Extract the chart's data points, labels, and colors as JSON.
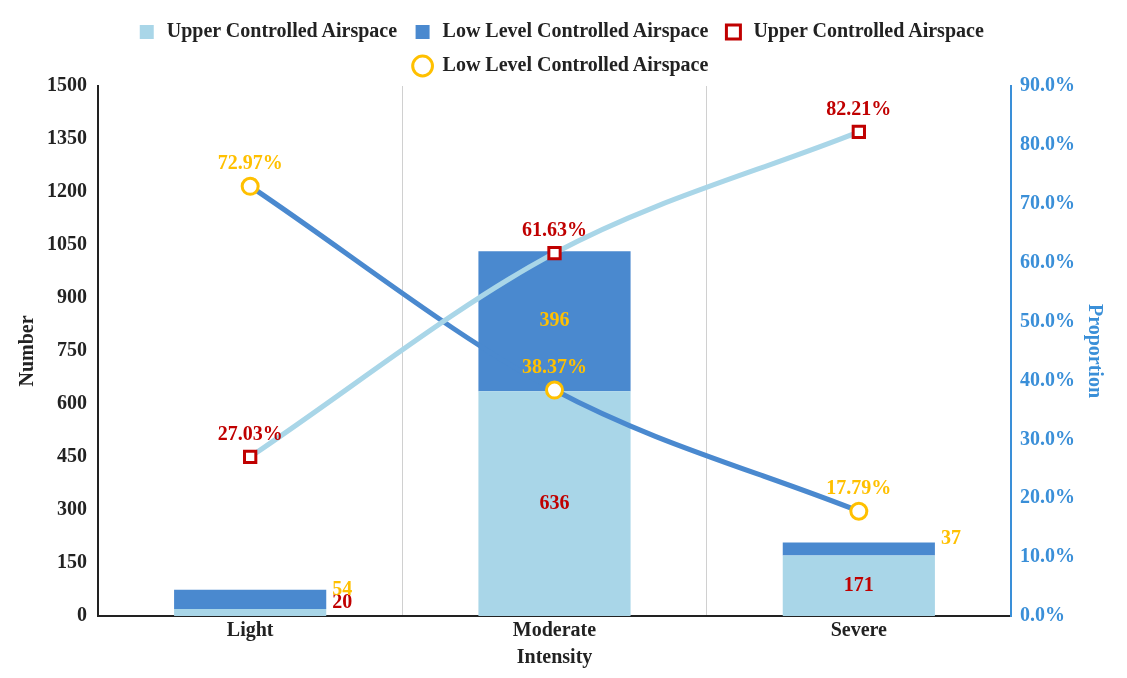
{
  "chart_data": {
    "type": "bar",
    "stacked": true,
    "xlabel": "Intensity",
    "ylabel": "Number",
    "y2label": "Proportion",
    "categories": [
      "Light",
      "Moderate",
      "Severe"
    ],
    "series": [
      {
        "name": "Upper Controlled Airspace",
        "color": "#a9d6e8",
        "values": [
          20,
          636,
          171
        ],
        "value_labels": [
          "20",
          "636",
          "171"
        ]
      },
      {
        "name": "Low Level Controlled Airspace",
        "color": "#4a89cf",
        "values": [
          54,
          396,
          37
        ],
        "value_labels": [
          "54",
          "396",
          "37"
        ]
      },
      {
        "name": "Upper Controlled Airspace",
        "type": "line",
        "axis": "y2",
        "marker": "square",
        "color": "#a9d6e8",
        "colors": [
          "#c00000",
          "#c00000",
          "#c00000"
        ],
        "values": [
          27.03,
          61.63,
          82.21
        ],
        "value_labels": [
          "27.03%",
          "61.63%",
          "82.21%"
        ]
      },
      {
        "name": "Low Level Controlled Airspace",
        "type": "line",
        "axis": "y2",
        "marker": "circle",
        "color": "#4a89cf",
        "colors": [
          "#ffc000",
          "#ffc000",
          "#ffc000"
        ],
        "values": [
          72.97,
          38.37,
          17.79
        ],
        "value_labels": [
          "72.97%",
          "38.37%",
          "17.79%"
        ]
      }
    ],
    "ylim": [
      0,
      1500
    ],
    "yticks": [
      0,
      150,
      300,
      450,
      600,
      750,
      900,
      1050,
      1200,
      1350,
      1500
    ],
    "y2lim": [
      0,
      90
    ],
    "y2ticks": [
      {
        "value": 0,
        "label": "0.0%"
      },
      {
        "value": 10,
        "label": "10.0%"
      },
      {
        "value": 20,
        "label": "20.0%"
      },
      {
        "value": 30,
        "label": "30.0%"
      },
      {
        "value": 40,
        "label": "40.0%"
      },
      {
        "value": 50,
        "label": "50.0%"
      },
      {
        "value": 60,
        "label": "60.0%"
      },
      {
        "value": 70,
        "label": "70.0%"
      },
      {
        "value": 80,
        "label": "80.0%"
      },
      {
        "value": 90,
        "label": "90.0%"
      }
    ],
    "grid": "x",
    "legend": "top"
  }
}
